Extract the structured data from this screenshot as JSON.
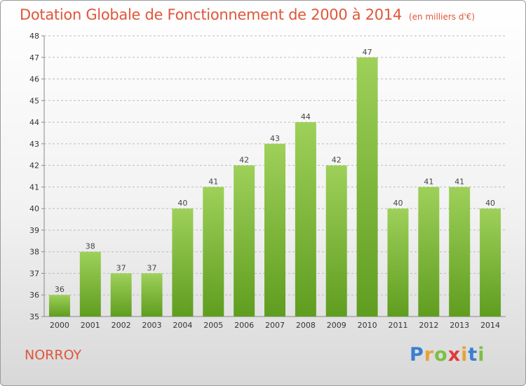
{
  "chart_data": {
    "type": "bar",
    "title": "Dotation Globale de Fonctionnement de 2000 à 2014",
    "subtitle": "(en milliers d'€)",
    "categories": [
      "2000",
      "2001",
      "2002",
      "2003",
      "2004",
      "2005",
      "2006",
      "2007",
      "2008",
      "2009",
      "2010",
      "2011",
      "2012",
      "2013",
      "2014"
    ],
    "values": [
      36,
      38,
      37,
      37,
      40,
      41,
      42,
      43,
      44,
      42,
      47,
      40,
      41,
      41,
      40
    ],
    "ylim": [
      35,
      48
    ],
    "yticks": [
      35,
      36,
      37,
      38,
      39,
      40,
      41,
      42,
      43,
      44,
      45,
      46,
      47,
      48
    ],
    "grid": true,
    "bar_color": "#7fc035"
  },
  "footer": {
    "place": "NORROY",
    "logo_letters": [
      "P",
      "r",
      "o",
      "x",
      "i",
      "t",
      "i"
    ],
    "logo_colors": [
      "#3a7fd0",
      "#e8a23a",
      "#7cc043",
      "#e03a3a",
      "#e8a23a",
      "#3a7fd0",
      "#7cc043"
    ]
  }
}
